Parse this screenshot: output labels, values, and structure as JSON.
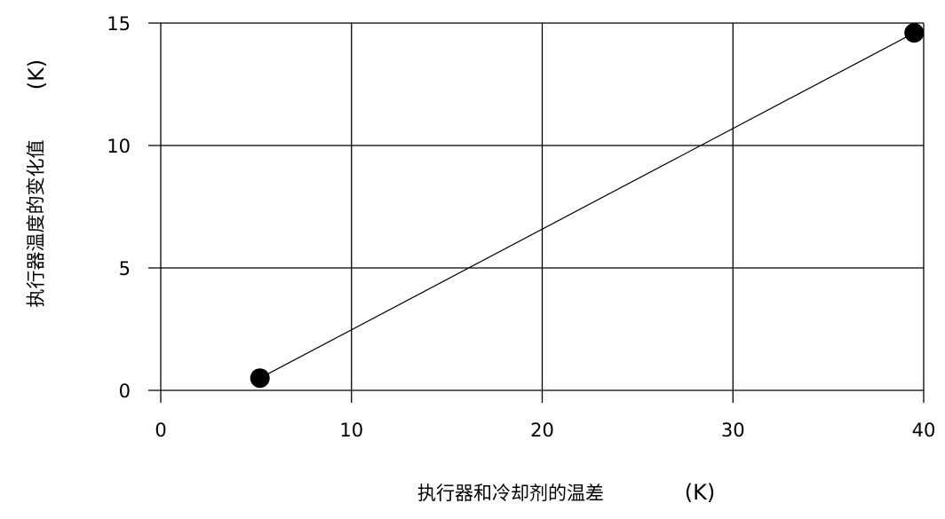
{
  "chart_data": {
    "type": "line",
    "title": "",
    "xlabel": "执行器和冷却剂的温差",
    "xlabel_unit": "(K)",
    "ylabel": "执行器温度的变化值",
    "ylabel_unit": "(K)",
    "xlim": [
      0,
      40
    ],
    "ylim": [
      0,
      15
    ],
    "xticks": [
      "0",
      "10",
      "20",
      "30",
      "40"
    ],
    "yticks": [
      "0",
      "5",
      "10",
      "15"
    ],
    "grid": true,
    "legend": "none",
    "series": [
      {
        "x": [
          5.2,
          39.5
        ],
        "y": [
          0.5,
          14.6
        ],
        "marker": "filled-circle",
        "color": "#000000"
      }
    ]
  }
}
